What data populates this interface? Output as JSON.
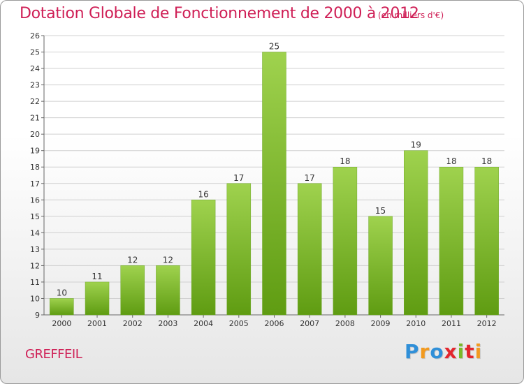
{
  "header": {
    "title": "Dotation Globale de Fonctionnement de 2000 à 2012",
    "subtitle": "(en milliers d'€)"
  },
  "footer": {
    "commune": "GREFFEIL",
    "brand_letters": [
      "P",
      "r",
      "o",
      "x",
      "i",
      "t",
      "i"
    ],
    "brand_colors": [
      "#2f8fd8",
      "#f29a1f",
      "#2f8fd8",
      "#e3262e",
      "#7ab929",
      "#e3262e",
      "#f29a1f"
    ]
  },
  "chart_data": {
    "type": "bar",
    "categories": [
      "2000",
      "2001",
      "2002",
      "2003",
      "2004",
      "2005",
      "2006",
      "2007",
      "2008",
      "2009",
      "2010",
      "2011",
      "2012"
    ],
    "values": [
      10,
      11,
      12,
      12,
      16,
      17,
      25,
      17,
      18,
      15,
      19,
      18,
      18
    ],
    "ylim": [
      9,
      26
    ],
    "yticks": [
      9,
      10,
      11,
      12,
      13,
      14,
      15,
      16,
      17,
      18,
      19,
      20,
      21,
      22,
      23,
      24,
      25,
      26
    ],
    "grid": true,
    "bar_color_light": "#9fd24e",
    "bar_color_dark": "#5f9c12",
    "grid_color": "#d0d0d0",
    "text_color": "#333333"
  }
}
